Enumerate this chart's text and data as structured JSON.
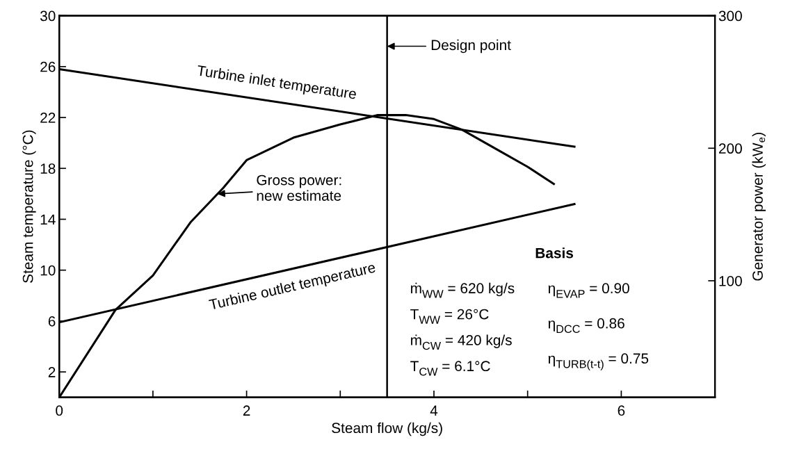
{
  "chart_data": {
    "type": "line",
    "xlabel": "Steam flow (kg/s)",
    "ylabel": "Steam temperature (°C)",
    "y2label": "Generator power (kW$_{e}$)",
    "xlim": [
      0,
      7
    ],
    "xticks": [
      0,
      {
        "value": 1,
        "label": null
      },
      2,
      {
        "value": 3,
        "label": null
      },
      4,
      {
        "value": 5,
        "label": null
      },
      6
    ],
    "ylim": [
      0,
      30
    ],
    "yticks": [
      2,
      6,
      10,
      14,
      18,
      22,
      26,
      30
    ],
    "y2lim": [
      12,
      300
    ],
    "y2ticks": [
      100,
      200,
      300
    ],
    "series": [
      {
        "name": "Turbine inlet temperature",
        "color": "#000000",
        "x": [
          0,
          5.5
        ],
        "values": [
          25.8,
          19.7
        ]
      },
      {
        "name": "Turbine outlet temperature",
        "color": "#000000",
        "x": [
          0,
          5.5
        ],
        "values": [
          5.9,
          15.2
        ]
      },
      {
        "name": "Gross power:\nnew estimate",
        "color": "#000000",
        "axis": "y2",
        "x": [
          0,
          0.5,
          0.6,
          1.0,
          1.4,
          1.75,
          2.0,
          2.5,
          3.0,
          3.4,
          3.7,
          4.0,
          4.3,
          4.7,
          5.0,
          5.28
        ],
        "values": [
          12,
          67,
          78,
          104,
          144,
          170,
          191,
          208,
          218,
          225,
          225,
          222,
          214,
          198,
          186,
          173
        ]
      }
    ],
    "ref_lines": [
      {
        "axis": "x",
        "value": 3.5,
        "label": "Design point",
        "color": "#000000"
      }
    ],
    "annotations": [
      "Basis",
      "ṁ$_{WW}$ = 620 kg/s",
      "T$_{WW}$ = 26°C",
      "ṁ$_{CW}$ = 420 kg/s",
      "T$_{CW}$ = 6.1°C",
      "η$_{EVAP}$ = 0.90",
      "η$_{DCC}$ = 0.86",
      "η$_{TURB(t-t)}$ = 0.75"
    ],
    "grid": false
  }
}
